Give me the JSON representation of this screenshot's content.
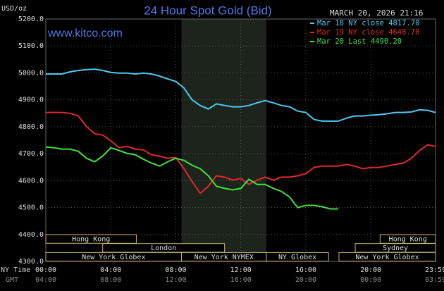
{
  "chart_data": {
    "type": "line",
    "title": "24 Hour Spot Gold (Bid)",
    "y_unit": "USD/oz",
    "watermark": "www.kitco.com",
    "timestamp": "MARCH 20, 2026 21:16",
    "x_label": "NY Time",
    "x2_label": "GMT",
    "xlim": [
      0,
      23.983
    ],
    "xticks": [
      {
        "value": 0,
        "label": "00:00"
      },
      {
        "value": 4,
        "label": "04:00"
      },
      {
        "value": 8,
        "label": "08:00"
      },
      {
        "value": 12,
        "label": "12:00"
      },
      {
        "value": 16,
        "label": "16:00"
      },
      {
        "value": 20,
        "label": "20:00"
      },
      {
        "value": 23.983,
        "label": "23:59"
      }
    ],
    "x2ticks": [
      "04:00",
      "08:00",
      "12:00",
      "16:00",
      "20:00",
      "00:00",
      "03:59"
    ],
    "ylim": [
      4300,
      5200
    ],
    "yticks": [
      {
        "value": 4300,
        "label": "4300.0"
      },
      {
        "value": 4400,
        "label": "4400.0"
      },
      {
        "value": 4500,
        "label": "4500.0"
      },
      {
        "value": 4600,
        "label": "4600.0"
      },
      {
        "value": 4700,
        "label": "4700.0"
      },
      {
        "value": 4800,
        "label": "4800.0"
      },
      {
        "value": 4900,
        "label": "4900.0"
      },
      {
        "value": 5000,
        "label": "5000.0"
      },
      {
        "value": 5100,
        "label": "5100.0"
      },
      {
        "value": 5200,
        "label": "5200.0"
      }
    ],
    "grid": true,
    "legend": "top-right",
    "series": [
      {
        "name": "Mar 18 NY close 4817.70",
        "color": "#4fc8f0",
        "x": [
          0,
          1,
          1.5,
          2,
          2.5,
          3,
          3.5,
          4,
          4.5,
          5,
          5.5,
          6,
          6.5,
          7,
          7.5,
          8,
          8.5,
          9,
          9.5,
          10,
          10.5,
          11,
          11.5,
          12,
          12.5,
          13,
          13.5,
          14,
          14.5,
          15,
          15.5,
          16,
          16.5,
          17,
          17.5,
          18,
          18.5,
          19,
          19.5,
          20,
          20.5,
          21,
          21.5,
          22,
          22.5,
          23,
          23.5,
          23.983
        ],
        "values": [
          4996,
          4996,
          5004,
          5009,
          5012,
          5014,
          5009,
          5002,
          4999,
          4999,
          4996,
          4999,
          4996,
          4988,
          4978,
          4968,
          4944,
          4900,
          4879,
          4866,
          4885,
          4879,
          4874,
          4874,
          4879,
          4889,
          4897,
          4889,
          4879,
          4874,
          4858,
          4853,
          4827,
          4821,
          4821,
          4821,
          4832,
          4840,
          4840,
          4843,
          4845,
          4848,
          4853,
          4853,
          4855,
          4863,
          4861,
          4853
        ]
      },
      {
        "name": "Mar 19 NY close 4648.70",
        "color": "#e0282a",
        "x": [
          0,
          0.5,
          1,
          1.5,
          2,
          2.5,
          3,
          3.5,
          4,
          4.5,
          5,
          5.5,
          6,
          6.5,
          7,
          7.5,
          8,
          8.5,
          9,
          9.5,
          10,
          10.5,
          11,
          11.5,
          12,
          12.5,
          13,
          13.5,
          14,
          14.5,
          15,
          15.5,
          16,
          16.5,
          17,
          17.5,
          18,
          18.5,
          19,
          19.5,
          20,
          20.5,
          21,
          21.5,
          22,
          22.5,
          23,
          23.5,
          23.983
        ],
        "values": [
          4853,
          4853,
          4853,
          4850,
          4840,
          4801,
          4774,
          4769,
          4748,
          4722,
          4727,
          4717,
          4714,
          4696,
          4691,
          4683,
          4686,
          4644,
          4597,
          4553,
          4579,
          4618,
          4613,
          4602,
          4608,
          4586,
          4602,
          4613,
          4602,
          4613,
          4613,
          4618,
          4626,
          4649,
          4654,
          4654,
          4654,
          4660,
          4654,
          4644,
          4649,
          4649,
          4654,
          4660,
          4665,
          4683,
          4712,
          4733,
          4727
        ]
      },
      {
        "name": "Mar 20 Last 4490.20",
        "color": "#40e040",
        "x": [
          0,
          0.5,
          1,
          1.5,
          2,
          2.5,
          3,
          3.5,
          4,
          4.5,
          5,
          5.5,
          6,
          6.5,
          7,
          7.5,
          8,
          8.5,
          9,
          9.5,
          10,
          10.5,
          11,
          11.5,
          12,
          12.5,
          13,
          13.5,
          14,
          14.5,
          15,
          15.5,
          16,
          16.5,
          17,
          17.5,
          18
        ],
        "values": [
          4725,
          4722,
          4717,
          4717,
          4709,
          4683,
          4670,
          4691,
          4722,
          4712,
          4701,
          4696,
          4680,
          4665,
          4654,
          4670,
          4683,
          4675,
          4657,
          4644,
          4618,
          4579,
          4571,
          4566,
          4571,
          4605,
          4586,
          4586,
          4571,
          4560,
          4539,
          4500,
          4508,
          4508,
          4503,
          4495,
          4495
        ]
      }
    ],
    "sessions": [
      {
        "name": "Hong Kong",
        "start": 0,
        "end": 5.57,
        "row": 0
      },
      {
        "name": "Hong Kong",
        "start": 20.57,
        "end": 23.983,
        "row": 0
      },
      {
        "name": "London",
        "start": 3.5,
        "end": 11,
        "row": 1
      },
      {
        "name": "Sydney",
        "start": 19.04,
        "end": 23.983,
        "row": 1
      },
      {
        "name": "New York Globex",
        "start": 0,
        "end": 8.35,
        "row": 2
      },
      {
        "name": "New York NYMEX",
        "start": 8.35,
        "end": 13.57,
        "row": 2
      },
      {
        "name": "NY Globex",
        "start": 13.57,
        "end": 17.4,
        "row": 2
      },
      {
        "name": "New York Globex",
        "start": 18.04,
        "end": 23.983,
        "row": 2
      }
    ],
    "highlight_session": 5
  }
}
